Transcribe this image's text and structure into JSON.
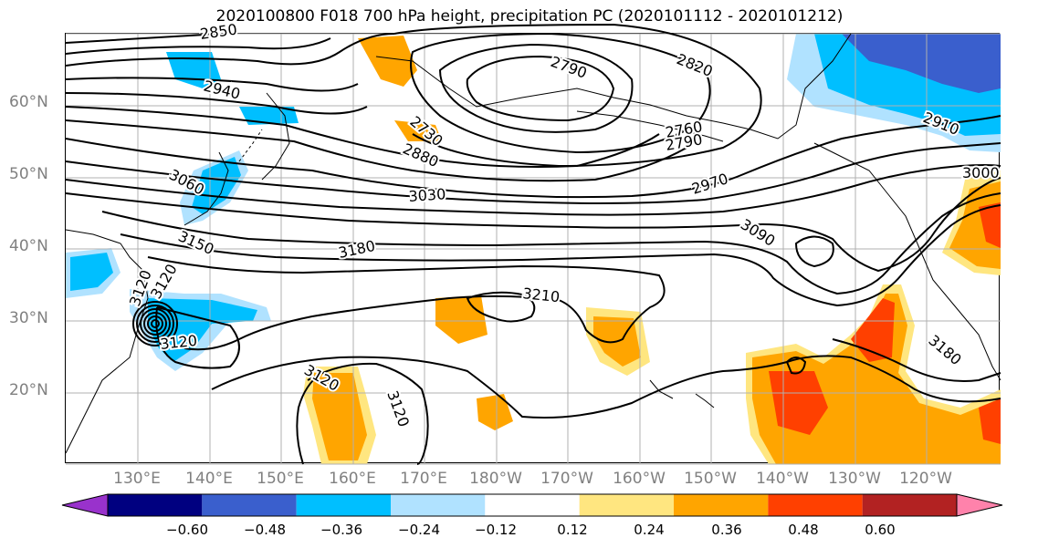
{
  "title": "2020100800 F018 700 hPa height, precipitation PC (2020101112 - 2020101212)",
  "lat_labels": [
    "60°N",
    "50°N",
    "40°N",
    "30°N",
    "20°N"
  ],
  "lon_labels": [
    "130°E",
    "140°E",
    "150°E",
    "160°E",
    "170°E",
    "180°W",
    "170°W",
    "160°W",
    "150°W",
    "140°W",
    "130°W",
    "120°W"
  ],
  "contour_labels": [
    "2850",
    "2940",
    "2790",
    "2820",
    "2730",
    "2760",
    "2790",
    "2880",
    "3060",
    "3030",
    "2970",
    "2910",
    "3000",
    "3150",
    "3090",
    "3120",
    "3180",
    "3210",
    "3120",
    "3120",
    "3120",
    "3180",
    "3120"
  ],
  "colorbar": {
    "ticks": [
      "−0.60",
      "−0.48",
      "−0.36",
      "−0.24",
      "−0.12",
      "0.12",
      "0.24",
      "0.36",
      "0.48",
      "0.60"
    ],
    "colors": [
      "#9932cc",
      "#000080",
      "#3a5fcd",
      "#00bfff",
      "#b0e2ff",
      "#ffffff",
      "#ffe680",
      "#ffa500",
      "#ff4000",
      "#b22222",
      "#ff82ab"
    ]
  },
  "colors": {
    "negative_light": "#b0e2ff",
    "negative_mid": "#00bfff",
    "negative_dark": "#3a5fcd",
    "positive_light": "#ffe680",
    "positive_mid": "#ffa500",
    "positive_dark": "#ff4000"
  }
}
